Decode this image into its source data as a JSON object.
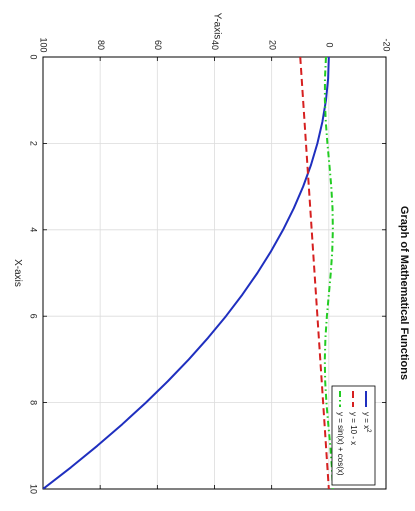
{
  "chart_data": {
    "type": "line",
    "title": "Graph of Mathematical Functions",
    "xlabel": "X-axis",
    "ylabel": "Y-axis",
    "xlim": [
      0,
      10
    ],
    "ylim": [
      -20,
      100
    ],
    "x_ticks": [
      "0",
      "2",
      "4",
      "6",
      "8",
      "10"
    ],
    "y_ticks": [
      "-20",
      "0",
      "20",
      "40",
      "60",
      "80",
      "100"
    ],
    "grid": true,
    "legend_position": "top-right",
    "x": [
      0,
      0.5,
      1,
      1.5,
      2,
      2.5,
      3,
      3.5,
      4,
      4.5,
      5,
      5.5,
      6,
      6.5,
      7,
      7.5,
      8,
      8.5,
      9,
      9.5,
      10
    ],
    "series": [
      {
        "name": "y = x",
        "name_superscript": "2",
        "style": "solid",
        "color": "#1f2fbf",
        "values": [
          0,
          0.25,
          1,
          2.25,
          4,
          6.25,
          9,
          12.25,
          16,
          20.25,
          25,
          30.25,
          36,
          42.25,
          49,
          56.25,
          64,
          72.25,
          81,
          90.25,
          100
        ]
      },
      {
        "name": "y = 10 - x",
        "style": "dashed",
        "color": "#d62020",
        "values": [
          10,
          9.5,
          9,
          8.5,
          8,
          7.5,
          7,
          6.5,
          6,
          5.5,
          5,
          4.5,
          4,
          3.5,
          3,
          2.5,
          2,
          1.5,
          1,
          0.5,
          0
        ]
      },
      {
        "name": "y = sin(x) + cos(x)",
        "style": "dashdot",
        "color": "#22cc22",
        "values": [
          1,
          1.357,
          1.382,
          1.068,
          0.493,
          -0.203,
          -0.849,
          -1.287,
          -1.41,
          -1.188,
          -0.675,
          0.003,
          0.681,
          1.192,
          1.411,
          1.284,
          0.844,
          0.196,
          -0.499,
          -1.072,
          -1.383
        ]
      }
    ]
  }
}
